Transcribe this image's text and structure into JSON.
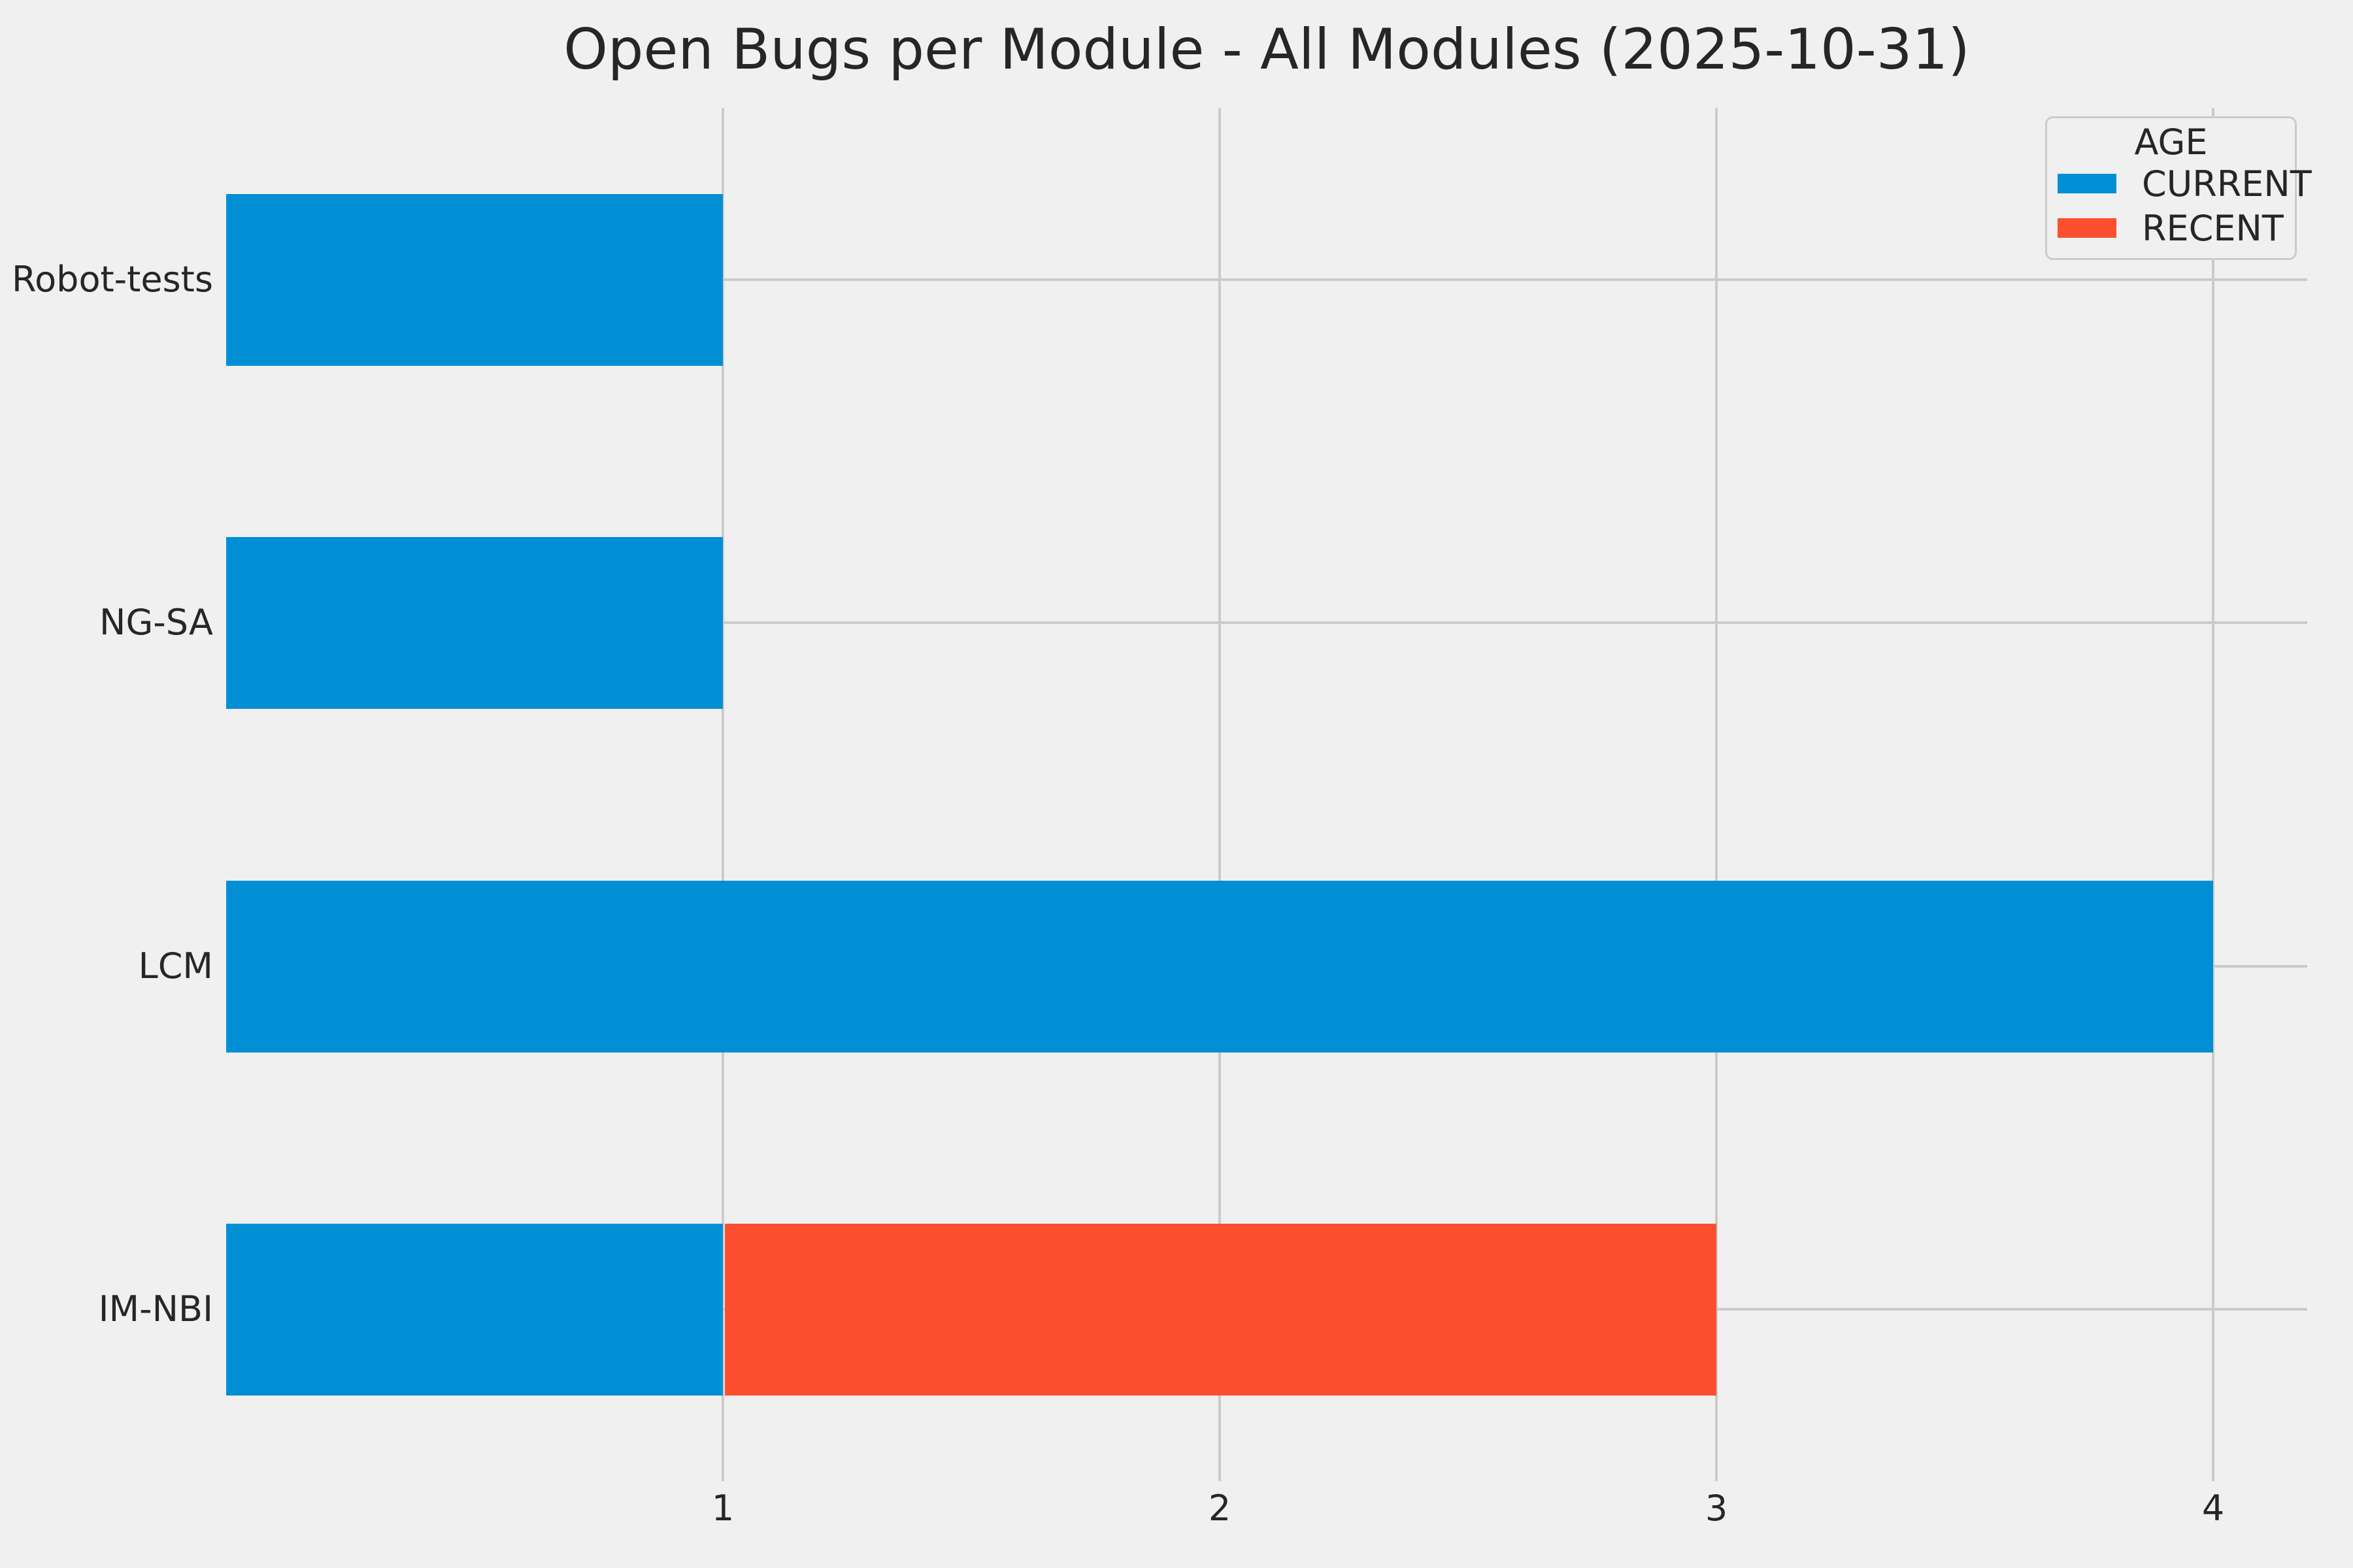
{
  "figure": {
    "background_color": "#f0f0f0",
    "grid_color": "#cbcbcb",
    "text_color": "#262626"
  },
  "chart_data": {
    "type": "bar",
    "orientation": "horizontal",
    "stacked": true,
    "title": "Open Bugs per Module - All Modules (2025-10-31)",
    "categories": [
      "Robot-tests",
      "NG-SA",
      "LCM",
      "IM-NBI"
    ],
    "series": [
      {
        "name": "CURRENT",
        "color": "#008fd5",
        "values": [
          1,
          1,
          4,
          1
        ]
      },
      {
        "name": "RECENT",
        "color": "#fc4f30",
        "values": [
          0,
          0,
          0,
          2
        ]
      }
    ],
    "totals": {
      "Robot-tests": 1,
      "NG-SA": 1,
      "LCM": 4,
      "IM-NBI": 3
    },
    "xlabel": "",
    "ylabel": "",
    "x_ticks": [
      1,
      2,
      3,
      4
    ],
    "xlim": [
      0,
      4.19
    ],
    "grid": true,
    "legend": {
      "title": "AGE",
      "position": "upper right"
    }
  }
}
